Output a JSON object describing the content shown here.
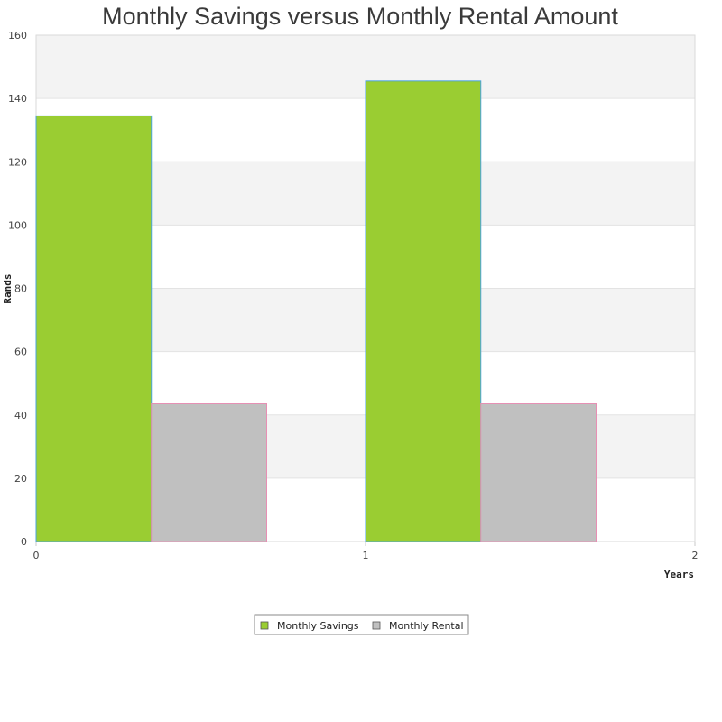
{
  "chart_data": {
    "type": "bar",
    "title": "Monthly Savings versus Monthly Rental Amount",
    "xlabel": "Years",
    "ylabel": "Rands",
    "x_ticks": [
      "0",
      "1",
      "2"
    ],
    "xlim": [
      0,
      2
    ],
    "y_ticks": [
      "0",
      "20",
      "40",
      "60",
      "80",
      "100",
      "120",
      "140",
      "160"
    ],
    "ylim": [
      0,
      160
    ],
    "grid": true,
    "legend_position": "bottom-center",
    "series": [
      {
        "name": "Monthly Savings",
        "x": [
          0,
          1
        ],
        "values": [
          134.5,
          145.5
        ],
        "color": "#9acd32",
        "border_color": "#4aa3df"
      },
      {
        "name": "Monthly Rental",
        "x": [
          0,
          1
        ],
        "values": [
          43.5,
          43.5
        ],
        "color": "#c0c0c0",
        "border_color": "#e78fb4"
      }
    ]
  }
}
